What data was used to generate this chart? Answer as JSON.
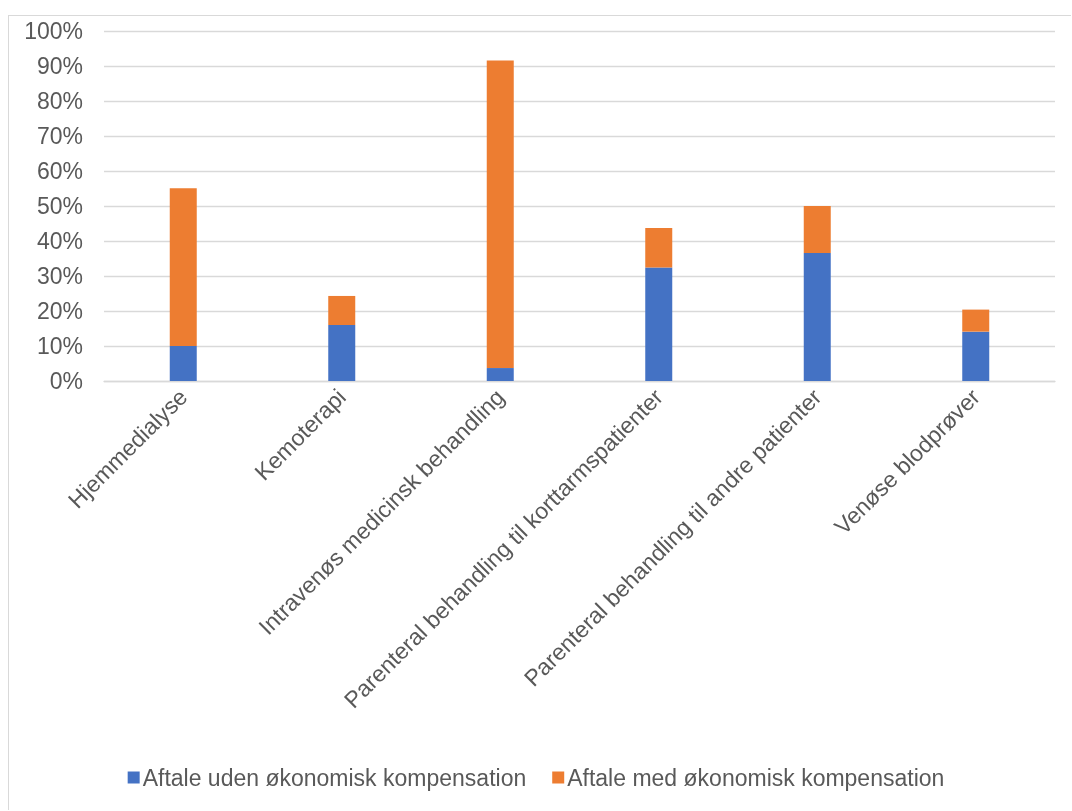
{
  "chart_data": {
    "type": "bar",
    "stacked": true,
    "categories": [
      "Hjemmedialyse",
      "Kemoterapi",
      "Intravenøs medicinsk behandling",
      "Parenteral behandling til korttarmspatienter",
      "Parenteral behandling til andre patienter",
      "Venøse blodprøver"
    ],
    "series": [
      {
        "name": "Aftale uden økonomisk kompensation",
        "color": "#4472c4",
        "values": [
          10.0,
          16.0,
          3.7,
          32.4,
          36.6,
          14.1
        ]
      },
      {
        "name": "Aftale med økonomisk kompensation",
        "color": "#ed7d31",
        "values": [
          45.1,
          8.3,
          87.9,
          11.3,
          13.4,
          6.3
        ]
      }
    ],
    "ylim": [
      0,
      100
    ],
    "yticks": [
      {
        "value": 0,
        "label": "0%"
      },
      {
        "value": 10,
        "label": "10%"
      },
      {
        "value": 20,
        "label": "20%"
      },
      {
        "value": 30,
        "label": "30%"
      },
      {
        "value": 40,
        "label": "40%"
      },
      {
        "value": 50,
        "label": "50%"
      },
      {
        "value": 60,
        "label": "60%"
      },
      {
        "value": 70,
        "label": "70%"
      },
      {
        "value": 80,
        "label": "80%"
      },
      {
        "value": 90,
        "label": "90%"
      },
      {
        "value": 100,
        "label": "100%"
      }
    ],
    "grid": "y",
    "legend": "bottom"
  }
}
